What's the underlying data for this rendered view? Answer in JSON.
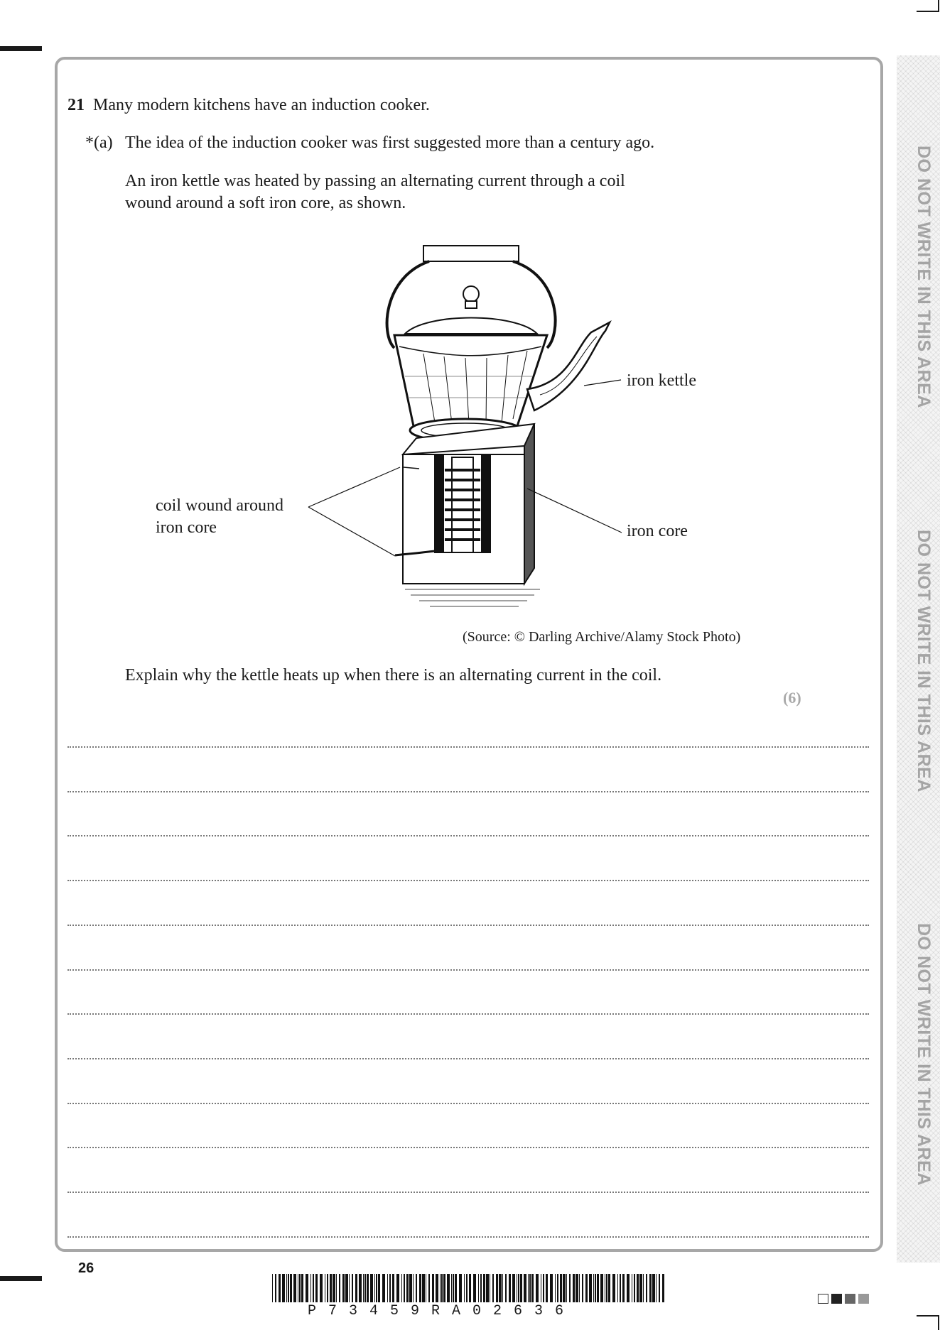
{
  "question": {
    "number": "21",
    "stem": "Many modern kitchens have an induction cooker.",
    "part_label": "*(a)",
    "part_text": "The idea of the induction cooker was first suggested more than a century ago.",
    "description_lines": [
      "An iron kettle was heated by passing an alternating current through a coil",
      "wound around a soft iron core, as shown."
    ],
    "figure": {
      "label_kettle": "iron kettle",
      "label_coil_lines": [
        "coil wound around",
        "iron core"
      ],
      "label_core": "iron core",
      "source": "(Source: © Darling Archive/Alamy Stock Photo)"
    },
    "prompt": "Explain why the kettle heats up when there is an alternating current in the coil.",
    "marks": "(6)",
    "answer_line_count": 12
  },
  "margin": {
    "warning": "DO NOT WRITE IN THIS AREA"
  },
  "footer": {
    "page_number": "26",
    "barcode_text": "P73459RA02636"
  }
}
